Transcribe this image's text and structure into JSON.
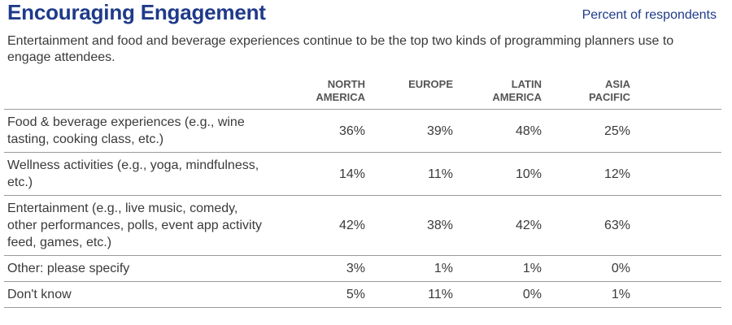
{
  "header": {
    "title": "Encouraging Engagement",
    "units": "Percent of respondents",
    "subtitle": "Entertainment and food and beverage experiences continue to be the top two kinds of programming planners use to engage attendees."
  },
  "colors": {
    "title": "#1f3a8a",
    "text": "#3a3a3a",
    "rule": "#9a9a9a"
  },
  "chart_data": {
    "type": "table",
    "title": "Encouraging Engagement",
    "subtitle": "Entertainment and food and beverage experiences continue to be the top two kinds of programming planners use to engage attendees.",
    "unit": "Percent of respondents",
    "columns": [
      "NORTH\nAMERICA",
      "EUROPE",
      "LATIN\nAMERICA",
      "ASIA\nPACIFIC"
    ],
    "rows": [
      {
        "label": "Food & beverage experiences (e.g., wine tasting, cooking class, etc.)",
        "values": [
          "36%",
          "39%",
          "48%",
          "25%"
        ]
      },
      {
        "label": "Wellness activities (e.g., yoga, mindfulness, etc.)",
        "values": [
          "14%",
          "11%",
          "10%",
          "12%"
        ]
      },
      {
        "label": "Entertainment (e.g., live music, comedy, other performances, polls, event app activity feed, games, etc.)",
        "values": [
          "42%",
          "38%",
          "42%",
          "63%"
        ]
      },
      {
        "label": "Other: please specify",
        "values": [
          "3%",
          "1%",
          "1%",
          "0%"
        ]
      },
      {
        "label": "Don't know",
        "values": [
          "5%",
          "11%",
          "0%",
          "1%"
        ]
      }
    ]
  }
}
